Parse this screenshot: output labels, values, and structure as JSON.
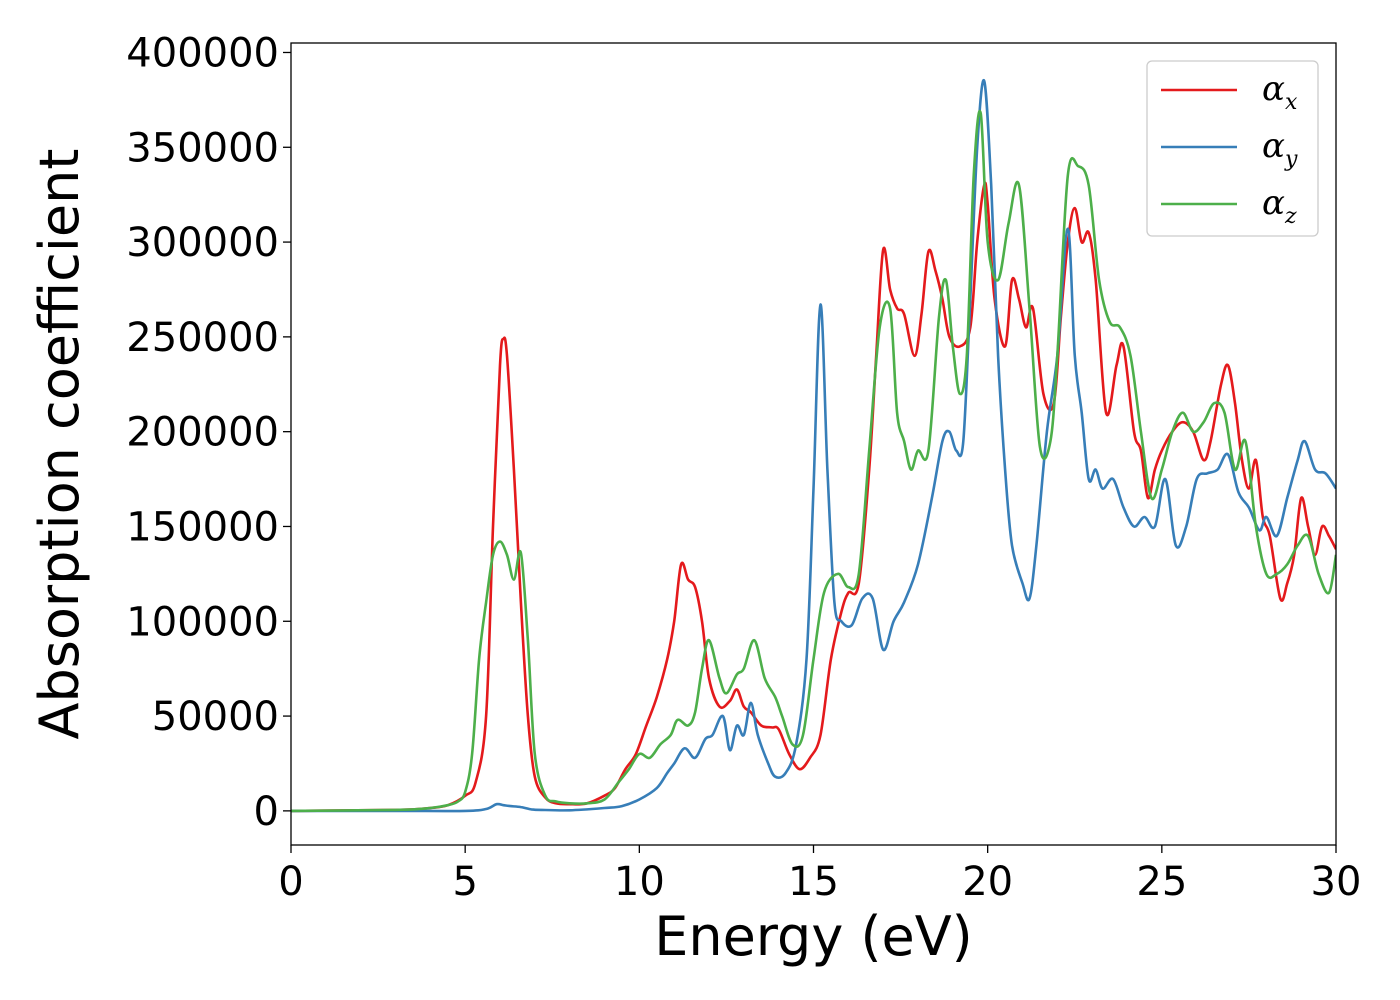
{
  "chart_data": {
    "type": "line",
    "xlabel": "Energy (eV)",
    "ylabel": "Absorption coefficient",
    "xlim": [
      0,
      30
    ],
    "ylim": [
      -18000,
      405000
    ],
    "x_ticks": [
      "0",
      "5",
      "10",
      "15",
      "20",
      "25",
      "30"
    ],
    "y_ticks": [
      "0",
      "50000",
      "100000",
      "150000",
      "200000",
      "250000",
      "300000",
      "350000",
      "400000"
    ],
    "grid": false,
    "legend_position": "top-right",
    "series": [
      {
        "name": "α_x",
        "legend_base": "α",
        "legend_sub": "x",
        "color": "#e41a1c",
        "x": [
          0,
          3,
          4,
          4.5,
          5,
          5.3,
          5.6,
          5.8,
          6.0,
          6.1,
          6.2,
          6.4,
          6.6,
          6.8,
          7.0,
          7.3,
          7.6,
          8.0,
          8.5,
          9.0,
          9.3,
          9.6,
          9.9,
          10.2,
          10.5,
          10.8,
          11.0,
          11.2,
          11.4,
          11.6,
          11.8,
          12.0,
          12.3,
          12.6,
          12.8,
          13.0,
          13.2,
          13.5,
          13.8,
          14.0,
          14.3,
          14.6,
          14.9,
          15.2,
          15.5,
          15.8,
          16.0,
          16.3,
          16.6,
          16.8,
          17.0,
          17.2,
          17.4,
          17.6,
          17.9,
          18.1,
          18.3,
          18.5,
          18.7,
          18.9,
          19.2,
          19.5,
          19.7,
          19.9,
          20.0,
          20.2,
          20.5,
          20.7,
          20.9,
          21.1,
          21.3,
          21.6,
          21.9,
          22.1,
          22.3,
          22.5,
          22.7,
          22.9,
          23.1,
          23.4,
          23.7,
          23.9,
          24.2,
          24.4,
          24.6,
          24.8,
          25.0,
          25.3,
          25.6,
          25.9,
          26.2,
          26.4,
          26.7,
          26.9,
          27.1,
          27.3,
          27.5,
          27.7,
          27.9,
          28.1,
          28.4,
          28.6,
          28.8,
          29.0,
          29.2,
          29.4,
          29.6,
          29.8,
          30.0
        ],
        "y": [
          0,
          500,
          1500,
          3000,
          8000,
          15000,
          50000,
          150000,
          235000,
          249000,
          240000,
          180000,
          110000,
          50000,
          18000,
          7000,
          4000,
          3500,
          4000,
          8000,
          12000,
          22000,
          30000,
          45000,
          60000,
          80000,
          100000,
          130000,
          122000,
          118000,
          100000,
          70000,
          55000,
          58000,
          64000,
          55000,
          52000,
          45000,
          44000,
          43000,
          30000,
          22000,
          28000,
          40000,
          80000,
          105000,
          115000,
          120000,
          180000,
          240000,
          296000,
          275000,
          265000,
          262000,
          240000,
          262000,
          295000,
          285000,
          270000,
          250000,
          245000,
          255000,
          300000,
          330000,
          320000,
          270000,
          245000,
          280000,
          270000,
          255000,
          265000,
          220000,
          215000,
          260000,
          300000,
          318000,
          300000,
          305000,
          280000,
          210000,
          235000,
          245000,
          200000,
          190000,
          165000,
          180000,
          190000,
          200000,
          205000,
          200000,
          185000,
          195000,
          225000,
          235000,
          215000,
          185000,
          170000,
          185000,
          155000,
          145000,
          112000,
          120000,
          135000,
          165000,
          150000,
          135000,
          150000,
          145000,
          138000
        ]
      },
      {
        "name": "α_y",
        "legend_base": "α",
        "legend_sub": "y",
        "color": "#377eb8",
        "x": [
          0,
          3,
          5,
          5.6,
          5.9,
          6.1,
          6.3,
          6.6,
          6.9,
          7.2,
          8,
          9,
          9.5,
          10.0,
          10.5,
          10.8,
          11.0,
          11.3,
          11.6,
          11.9,
          12.1,
          12.4,
          12.6,
          12.8,
          13.0,
          13.2,
          13.4,
          13.7,
          13.9,
          14.2,
          14.5,
          14.8,
          15.0,
          15.2,
          15.4,
          15.6,
          15.8,
          16.1,
          16.4,
          16.7,
          17.0,
          17.3,
          17.6,
          18.0,
          18.4,
          18.7,
          18.9,
          19.1,
          19.3,
          19.5,
          19.7,
          19.9,
          20.1,
          20.3,
          20.5,
          20.7,
          21.0,
          21.2,
          21.4,
          21.7,
          22.0,
          22.3,
          22.5,
          22.7,
          22.9,
          23.1,
          23.3,
          23.6,
          23.9,
          24.2,
          24.5,
          24.8,
          25.1,
          25.4,
          25.7,
          26.0,
          26.3,
          26.6,
          26.9,
          27.2,
          27.5,
          27.8,
          28.0,
          28.3,
          28.6,
          28.9,
          29.1,
          29.4,
          29.7,
          30.0
        ],
        "y": [
          0,
          0,
          0,
          1000,
          3500,
          3000,
          2500,
          2000,
          800,
          500,
          300,
          1500,
          2500,
          6000,
          12000,
          20000,
          25000,
          33000,
          28000,
          38000,
          40000,
          50000,
          32000,
          45000,
          40000,
          57000,
          40000,
          25000,
          18000,
          20000,
          35000,
          80000,
          170000,
          267000,
          180000,
          110000,
          100000,
          98000,
          112000,
          112000,
          85000,
          100000,
          110000,
          130000,
          165000,
          195000,
          200000,
          190000,
          195000,
          270000,
          350000,
          385000,
          330000,
          240000,
          180000,
          140000,
          120000,
          112000,
          140000,
          200000,
          240000,
          307000,
          240000,
          210000,
          175000,
          180000,
          170000,
          175000,
          160000,
          150000,
          155000,
          150000,
          175000,
          140000,
          150000,
          175000,
          178000,
          180000,
          188000,
          168000,
          160000,
          148000,
          155000,
          145000,
          165000,
          185000,
          195000,
          180000,
          178000,
          170000
        ]
      },
      {
        "name": "α_z",
        "legend_base": "α",
        "legend_sub": "z",
        "color": "#4daf4a",
        "x": [
          0,
          3,
          4,
          4.5,
          4.8,
          5.0,
          5.2,
          5.4,
          5.6,
          5.8,
          6.0,
          6.2,
          6.4,
          6.6,
          6.8,
          7.0,
          7.3,
          7.6,
          8.0,
          8.5,
          9.0,
          9.4,
          9.7,
          10.0,
          10.3,
          10.6,
          10.9,
          11.1,
          11.4,
          11.6,
          11.8,
          12.0,
          12.3,
          12.5,
          12.8,
          13.0,
          13.3,
          13.6,
          13.9,
          14.1,
          14.4,
          14.7,
          15.0,
          15.3,
          15.7,
          16.0,
          16.3,
          16.6,
          16.9,
          17.2,
          17.4,
          17.6,
          17.8,
          18.0,
          18.3,
          18.6,
          18.8,
          19.0,
          19.2,
          19.4,
          19.6,
          19.8,
          20.0,
          20.3,
          20.6,
          20.9,
          21.2,
          21.5,
          21.8,
          22.0,
          22.3,
          22.6,
          22.9,
          23.2,
          23.5,
          23.8,
          24.1,
          24.4,
          24.7,
          25.0,
          25.3,
          25.6,
          25.9,
          26.2,
          26.5,
          26.8,
          27.1,
          27.4,
          27.7,
          28.0,
          28.3,
          28.6,
          28.9,
          29.2,
          29.5,
          29.8,
          30.0
        ],
        "y": [
          0,
          500,
          1500,
          3000,
          5000,
          10000,
          30000,
          80000,
          110000,
          135000,
          142000,
          135000,
          122000,
          136000,
          90000,
          30000,
          8000,
          5000,
          4000,
          4000,
          6000,
          15000,
          22000,
          30000,
          28000,
          35000,
          40000,
          48000,
          45000,
          52000,
          75000,
          90000,
          70000,
          62000,
          72000,
          75000,
          90000,
          70000,
          60000,
          50000,
          35000,
          40000,
          80000,
          115000,
          125000,
          118000,
          125000,
          190000,
          255000,
          265000,
          210000,
          195000,
          180000,
          190000,
          190000,
          260000,
          280000,
          245000,
          220000,
          240000,
          335000,
          368000,
          300000,
          280000,
          310000,
          330000,
          265000,
          192000,
          195000,
          240000,
          335000,
          340000,
          330000,
          280000,
          258000,
          255000,
          240000,
          200000,
          165000,
          180000,
          200000,
          210000,
          200000,
          205000,
          215000,
          210000,
          180000,
          195000,
          150000,
          125000,
          125000,
          130000,
          140000,
          145000,
          125000,
          115000,
          135000
        ]
      }
    ]
  }
}
